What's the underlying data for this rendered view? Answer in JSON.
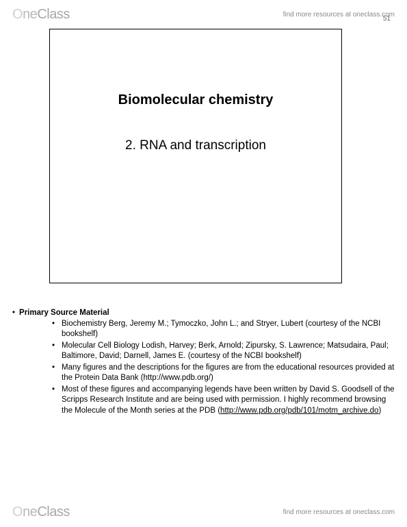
{
  "watermark": {
    "logo_o": "O",
    "logo_ne": "ne",
    "logo_class": "Class",
    "find_more": "find more resources at oneclass.com"
  },
  "page_number": "51",
  "slide": {
    "title": "Biomolecular chemistry",
    "subtitle": "2. RNA and transcription"
  },
  "primary_source": {
    "heading": "Primary Source Material",
    "items": [
      "Biochemistry Berg, Jeremy M.; Tymoczko, John L.; and Stryer, Lubert (courtesy of the NCBI bookshelf)",
      "Molecular Cell Biology Lodish, Harvey; Berk, Arnold; Zipursky, S. Lawrence; Matsudaira, Paul; Baltimore, David; Darnell, James E. (courtesy of the NCBI bookshelf)",
      "Many figures and the descriptions for the figures are from the educational resources provided at the Protein Data Bank (http://www.pdb.org/)"
    ],
    "item4_text": "Most of these figures and accompanying legends have been written by David S. Goodsell of the Scripps Research Institute and are being used with permission. I highly recommend browsing the Molecule of the Month series at the PDB (",
    "item4_link": "http://www.pdb.org/pdb/101/motm_archive.do",
    "item4_close": ")"
  }
}
